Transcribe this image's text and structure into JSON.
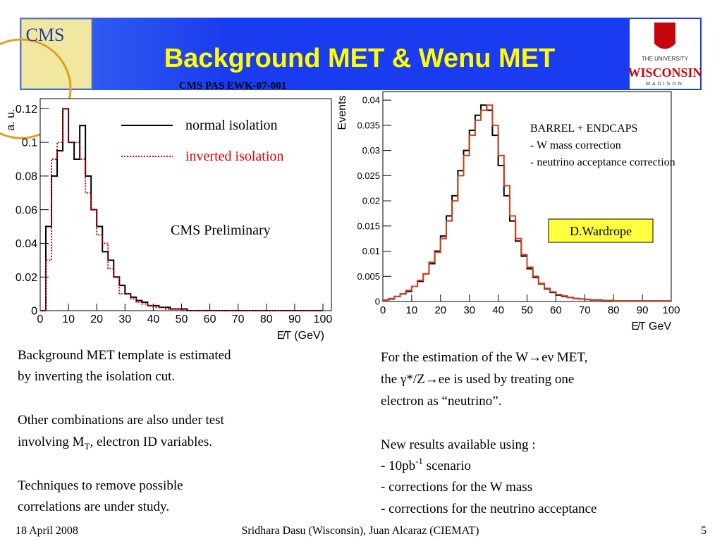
{
  "header": {
    "title": "Background MET & Wenu MET",
    "subtitle": "CMS PAS EWK-07-001",
    "logo_left": "CMS",
    "logo_right": [
      "THE UNIVERSITY",
      "WISCONSIN",
      "MADISON"
    ]
  },
  "chart_data": [
    {
      "type": "histogram",
      "y_label": "a. u.",
      "x_label": "E̸T (GeV)",
      "bins": [
        0,
        2,
        4,
        6,
        8,
        10,
        12,
        14,
        16,
        18,
        20,
        22,
        24,
        26,
        28,
        30,
        32,
        34,
        36,
        38,
        40,
        42,
        44,
        46,
        48,
        50,
        52,
        54,
        56,
        58,
        60,
        62,
        64,
        66,
        68,
        70,
        72,
        74,
        76,
        78,
        80,
        82,
        84,
        86,
        88,
        90,
        92,
        94,
        96,
        98,
        100
      ],
      "xlim": [
        0,
        103
      ],
      "ylim": [
        0,
        0.126
      ],
      "xticks": [
        0,
        10,
        20,
        30,
        40,
        50,
        60,
        70,
        80,
        90,
        100
      ],
      "yticks": [
        0,
        0.02,
        0.04,
        0.06,
        0.08,
        0.1,
        0.12
      ],
      "annotations": [
        "CMS Preliminary"
      ],
      "legend": "top-right",
      "series": [
        {
          "name": "normal isolation",
          "color": "#000000",
          "style": "solid",
          "values": [
            0,
            0.05,
            0.08,
            0.095,
            0.12,
            0.1,
            0.09,
            0.11,
            0.08,
            0.06,
            0.05,
            0.035,
            0.03,
            0.02,
            0.015,
            0.01,
            0.008,
            0.006,
            0.005,
            0.003,
            0.003,
            0.002,
            0.002,
            0.001,
            0.001,
            0.001,
            0,
            0,
            0,
            0,
            0,
            0,
            0,
            0,
            0,
            0,
            0,
            0,
            0,
            0,
            0,
            0,
            0,
            0,
            0,
            0,
            0,
            0,
            0,
            0
          ]
        },
        {
          "name": "inverted isolation",
          "color": "#e00000",
          "style": "dotted",
          "values": [
            0,
            0.03,
            0.09,
            0.1,
            0.12,
            0.1,
            0.1,
            0.09,
            0.07,
            0.06,
            0.045,
            0.04,
            0.025,
            0.02,
            0.01,
            0.01,
            0.007,
            0.005,
            0.004,
            0.003,
            0.002,
            0.002,
            0.001,
            0.001,
            0.001,
            0,
            0,
            0,
            0,
            0,
            0,
            0,
            0,
            0,
            0,
            0,
            0,
            0,
            0,
            0,
            0,
            0,
            0,
            0,
            0,
            0,
            0,
            0,
            0,
            0
          ]
        }
      ]
    },
    {
      "type": "histogram",
      "y_label": "Events",
      "x_label": "E̸T GeV",
      "bins": [
        0,
        2,
        4,
        6,
        8,
        10,
        12,
        14,
        16,
        18,
        20,
        22,
        24,
        26,
        28,
        30,
        32,
        34,
        36,
        38,
        40,
        42,
        44,
        46,
        48,
        50,
        52,
        54,
        56,
        58,
        60,
        62,
        64,
        66,
        68,
        70,
        72,
        74,
        76,
        78,
        80,
        82,
        84,
        86,
        88,
        90,
        92,
        94,
        96,
        98,
        100
      ],
      "xlim": [
        0,
        100
      ],
      "ylim": [
        0,
        0.0417
      ],
      "xticks": [
        0,
        10,
        20,
        30,
        40,
        50,
        60,
        70,
        80,
        90,
        100
      ],
      "yticks": [
        0,
        0.005,
        0.01,
        0.015,
        0.02,
        0.025,
        0.03,
        0.035,
        0.04
      ],
      "annotations": [
        "BARREL + ENDCAPS",
        "- W mass correction",
        "- neutrino acceptance correction",
        "D.Wardrope"
      ],
      "series": [
        {
          "color": "#000000",
          "style": "solid",
          "values": [
            0.0003,
            0.0005,
            0.001,
            0.0015,
            0.002,
            0.003,
            0.004,
            0.0055,
            0.0075,
            0.01,
            0.013,
            0.017,
            0.021,
            0.026,
            0.03,
            0.034,
            0.037,
            0.039,
            0.038,
            0.033,
            0.027,
            0.021,
            0.016,
            0.012,
            0.009,
            0.0065,
            0.0048,
            0.0035,
            0.0025,
            0.0018,
            0.0013,
            0.001,
            0.0008,
            0.0006,
            0.0005,
            0.0004,
            0.0003,
            0.0003,
            0.0002,
            0.0002,
            0.0001,
            0.0001,
            0.0001,
            0.0001,
            0.0001,
            0.0001,
            0.0001,
            0.0001,
            0.0001,
            0.0001
          ]
        },
        {
          "color": "#d04020",
          "style": "solid",
          "values": [
            0.0003,
            0.0006,
            0.001,
            0.0015,
            0.0022,
            0.003,
            0.0042,
            0.0055,
            0.0078,
            0.0098,
            0.0125,
            0.016,
            0.02,
            0.025,
            0.029,
            0.033,
            0.036,
            0.038,
            0.039,
            0.035,
            0.029,
            0.023,
            0.017,
            0.0125,
            0.0093,
            0.0068,
            0.005,
            0.0036,
            0.0026,
            0.0019,
            0.0014,
            0.0011,
            0.0008,
            0.0006,
            0.0005,
            0.0004,
            0.0003,
            0.0003,
            0.0002,
            0.0002,
            0.0001,
            0.0001,
            0.0001,
            0.0001,
            0.0001,
            0.0001,
            0.0001,
            0.0001,
            0.0001,
            0.0001
          ]
        }
      ]
    }
  ],
  "left_text": [
    "Background MET template is estimated",
    "by inverting the isolation cut.",
    "Other combinations are also under test",
    {
      "text": "involving M",
      "sub": "T",
      "after": ", electron ID variables."
    },
    "Techniques to remove possible",
    "correlations are under study."
  ],
  "right_text": [
    "For the estimation of the W→eν MET,",
    "the γ*/Z→ee is used by treating one",
    "electron as “neutrino”.",
    "New results available using :",
    {
      "text": "- 10pb",
      "sup": "-1",
      "after": " scenario"
    },
    "- corrections for the W mass",
    "- corrections for the neutrino acceptance"
  ],
  "footer": {
    "date": "18 April 2008",
    "authors": "Sridhara Dasu (Wisconsin), Juan Alcaraz (CIEMAT)",
    "page": "5"
  }
}
